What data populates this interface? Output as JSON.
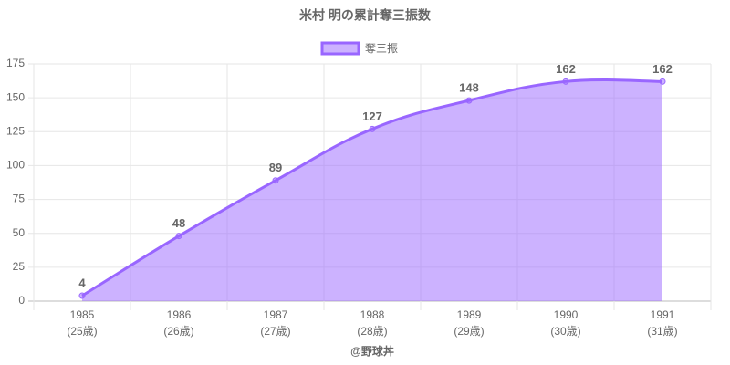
{
  "chart_data": {
    "type": "area",
    "title": "米村 明の累計奪三振数",
    "categories": [
      [
        "1985",
        "(25歳)"
      ],
      [
        "1986",
        "(26歳)"
      ],
      [
        "1987",
        "(27歳)"
      ],
      [
        "1988",
        "(28歳)"
      ],
      [
        "1989",
        "(29歳)"
      ],
      [
        "1990",
        "(30歳)"
      ],
      [
        "1991",
        "(31歳)"
      ]
    ],
    "series": [
      {
        "name": "奪三振",
        "color": "#9966ff",
        "fill": "rgba(153,102,255,0.5)",
        "values": [
          4,
          48,
          89,
          127,
          148,
          162,
          162
        ]
      }
    ],
    "x_label": "@野球丼",
    "ylim": [
      0,
      175
    ],
    "yticks": [
      0,
      25,
      50,
      75,
      100,
      125,
      150,
      175
    ],
    "grid": true
  }
}
